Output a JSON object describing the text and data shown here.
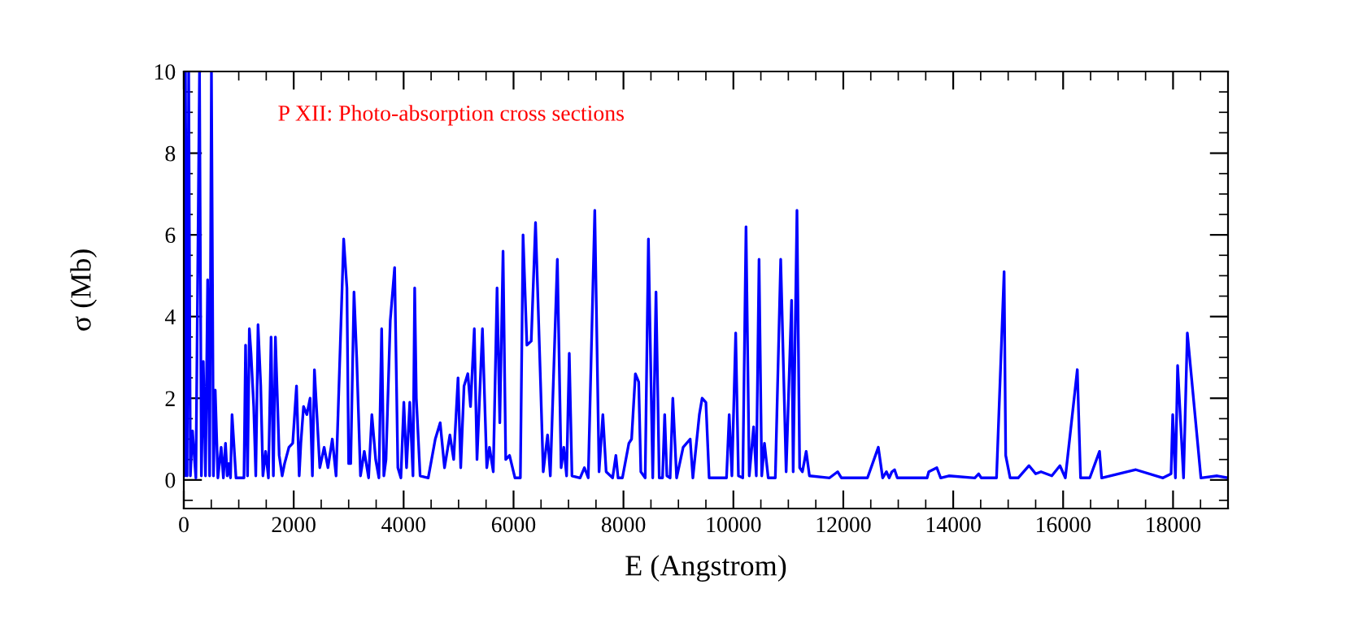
{
  "chart_data": {
    "type": "line",
    "xlabel": "E (Angstrom)",
    "ylabel": "σ (Mb)",
    "annotations": [
      "P XII: Photo-absorption cross sections"
    ],
    "xlim": [
      0,
      19000
    ],
    "ylim": [
      -0.7,
      10
    ],
    "xticks": [
      0,
      2000,
      4000,
      6000,
      8000,
      10000,
      12000,
      14000,
      16000,
      18000
    ],
    "yticks": [
      0,
      2,
      4,
      6,
      8,
      10
    ],
    "grid": false,
    "line_style": "solid",
    "marker": "none",
    "series": [
      {
        "color": "#0000ff",
        "x": [
          0,
          15,
          30,
          60,
          89,
          120,
          158,
          220,
          286,
          320,
          355,
          395,
          434,
          470,
          503,
          540,
          572,
          620,
          680,
          720,
          759,
          790,
          818,
          850,
          878,
          950,
          1095,
          1124,
          1160,
          1193,
          1223,
          1272,
          1310,
          1351,
          1400,
          1440,
          1489,
          1540,
          1588,
          1630,
          1667,
          1736,
          1790,
          1834,
          1913,
          1982,
          2051,
          2100,
          2130,
          2179,
          2239,
          2298,
          2340,
          2377,
          2475,
          2554,
          2623,
          2702,
          2771,
          2909,
          2968,
          3000,
          3037,
          3097,
          3146,
          3215,
          3284,
          3363,
          3422,
          3491,
          3550,
          3600,
          3640,
          3679,
          3757,
          3836,
          3895,
          3950,
          4004,
          4053,
          4112,
          4170,
          4201,
          4231,
          4300,
          4448,
          4576,
          4665,
          4744,
          4842,
          4911,
          4990,
          5039,
          5099,
          5168,
          5217,
          5286,
          5335,
          5434,
          5513,
          5562,
          5631,
          5700,
          5750,
          5809,
          5858,
          5927,
          6026,
          6124,
          6173,
          6243,
          6322,
          6400,
          6491,
          6540,
          6619,
          6669,
          6797,
          6866,
          6915,
          6965,
          7014,
          7063,
          7211,
          7290,
          7359,
          7478,
          7556,
          7625,
          7685,
          7803,
          7862,
          7902,
          7981,
          8099,
          8148,
          8217,
          8277,
          8316,
          8395,
          8454,
          8533,
          8592,
          8651,
          8711,
          8750,
          8790,
          8849,
          8898,
          8967,
          9086,
          9214,
          9263,
          9381,
          9431,
          9500,
          9559,
          9875,
          9924,
          9973,
          10042,
          10092,
          10171,
          10230,
          10289,
          10368,
          10417,
          10467,
          10516,
          10565,
          10634,
          10763,
          10861,
          10960,
          11059,
          11088,
          11157,
          11206,
          11256,
          11325,
          11384,
          11749,
          11897,
          11966,
          12440,
          12637,
          12716,
          12785,
          12835,
          12884,
          12933,
          12982,
          13525,
          13555,
          13702,
          13772,
          13920,
          14393,
          14462,
          14510,
          14788,
          14926,
          14955,
          15035,
          15182,
          15379,
          15500,
          15597,
          15794,
          15942,
          16040,
          16258,
          16317,
          16485,
          16662,
          16701,
          17323,
          17816,
          17964,
          17994,
          18043,
          18083,
          18191,
          18260,
          18507,
          18803,
          19000
        ],
        "values": [
          5.3,
          0.1,
          10,
          0.1,
          10,
          0.1,
          1.2,
          0.05,
          10,
          0.1,
          2.9,
          0.1,
          4.9,
          0.1,
          10,
          0.1,
          2.2,
          0.05,
          0.8,
          0.05,
          0.9,
          0.1,
          0.4,
          0.05,
          1.6,
          0.05,
          0.05,
          3.3,
          0.1,
          3.7,
          3.1,
          1.8,
          0.1,
          3.8,
          2.3,
          0.1,
          0.7,
          0.05,
          3.5,
          0.1,
          3.5,
          0.6,
          0.1,
          0.4,
          0.8,
          0.9,
          2.3,
          0.1,
          0.9,
          1.8,
          1.6,
          2.0,
          0.1,
          2.7,
          0.3,
          0.8,
          0.3,
          1.0,
          0.1,
          5.9,
          4.7,
          0.4,
          0.4,
          4.6,
          3.0,
          0.1,
          0.7,
          0.05,
          1.6,
          0.5,
          0.05,
          3.7,
          0.1,
          0.5,
          3.9,
          5.2,
          0.3,
          0.05,
          1.9,
          0.3,
          1.9,
          0.1,
          4.7,
          2.0,
          0.1,
          0.05,
          1.0,
          1.4,
          0.3,
          1.1,
          0.5,
          2.5,
          0.3,
          2.3,
          2.6,
          1.8,
          3.7,
          0.5,
          3.7,
          0.3,
          0.8,
          0.2,
          4.7,
          1.4,
          5.6,
          0.5,
          0.6,
          0.05,
          0.05,
          6.0,
          3.3,
          3.4,
          6.3,
          2.4,
          0.2,
          1.1,
          0.1,
          5.4,
          0.3,
          0.8,
          0.1,
          3.1,
          0.1,
          0.05,
          0.3,
          0.05,
          6.6,
          0.2,
          1.6,
          0.2,
          0.05,
          0.6,
          0.05,
          0.05,
          0.9,
          1.0,
          2.6,
          2.4,
          0.2,
          0.05,
          5.9,
          0.05,
          4.6,
          0.05,
          0.05,
          1.6,
          0.1,
          0.05,
          2.0,
          0.05,
          0.8,
          1.0,
          0.05,
          1.6,
          2.0,
          1.9,
          0.05,
          0.05,
          1.6,
          0.1,
          3.6,
          0.1,
          0.05,
          6.2,
          0.1,
          1.3,
          0.1,
          5.4,
          0.1,
          0.9,
          0.05,
          0.05,
          5.4,
          0.2,
          4.4,
          0.2,
          6.6,
          0.3,
          0.2,
          0.7,
          0.1,
          0.05,
          0.2,
          0.05,
          0.05,
          0.8,
          0.05,
          0.2,
          0.05,
          0.2,
          0.25,
          0.05,
          0.05,
          0.2,
          0.3,
          0.05,
          0.1,
          0.05,
          0.15,
          0.05,
          0.05,
          5.1,
          0.6,
          0.05,
          0.05,
          0.35,
          0.15,
          0.2,
          0.1,
          0.35,
          0.05,
          2.7,
          0.05,
          0.05,
          0.7,
          0.05,
          0.25,
          0.05,
          0.15,
          1.6,
          0.05,
          2.8,
          0.05,
          3.6,
          0.05,
          0.1,
          0.05
        ]
      }
    ]
  }
}
